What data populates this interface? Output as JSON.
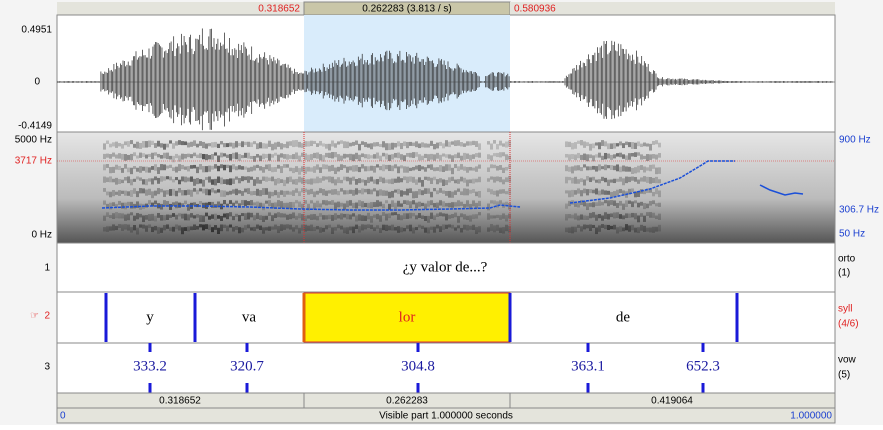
{
  "selection_bar": {
    "start": "0.318652",
    "duration": "0.262283 (3.813 / s)",
    "end": "0.580936"
  },
  "waveform": {
    "max": "0.4951",
    "zero": "0",
    "min": "-0.4149"
  },
  "spectrogram": {
    "top": "5000 Hz",
    "cursor": "3717 Hz",
    "bottom": "0 Hz",
    "pitch_top": "900 Hz",
    "pitch_mid": "306.7 Hz",
    "pitch_bottom": "50 Hz"
  },
  "tiers": [
    {
      "number": "1",
      "name": "orto",
      "count": "(1)",
      "labels": [
        "¿y valor de...?"
      ]
    },
    {
      "number": "2",
      "pointer": "☞",
      "name": "syll",
      "count": "(4/6)",
      "labels": [
        "y",
        "va",
        "lor",
        "de"
      ]
    },
    {
      "number": "3",
      "name": "vow",
      "count": "(5)",
      "labels": [
        "333.2",
        "320.7",
        "304.8",
        "363.1",
        "652.3"
      ]
    }
  ],
  "bottom_bar": {
    "segments": [
      "0.318652",
      "0.262283",
      "0.419064"
    ],
    "start": "0",
    "visible": "Visible part 1.000000 seconds",
    "end": "1.000000"
  }
}
